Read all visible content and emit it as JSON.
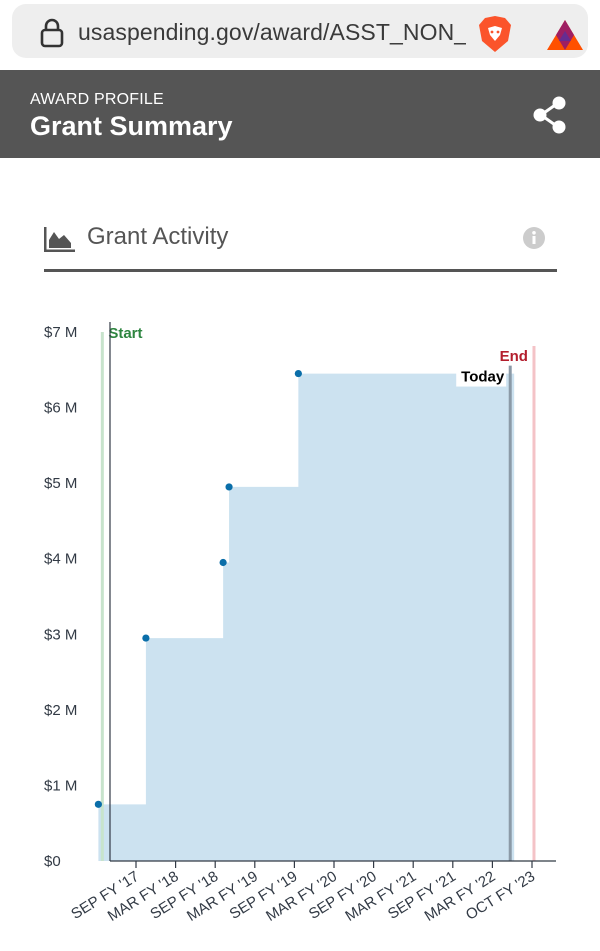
{
  "browser": {
    "url": "usaspending.gov/award/ASST_NON_"
  },
  "header": {
    "eyebrow": "AWARD PROFILE",
    "title": "Grant Summary"
  },
  "section": {
    "title": "Grant Activity"
  },
  "chart_data": {
    "type": "area",
    "step": true,
    "title": "",
    "xlabel": "",
    "ylabel": "",
    "ylim": [
      0,
      7
    ],
    "y_unit": "$M",
    "y_ticks": [
      0,
      1,
      2,
      3,
      4,
      5,
      6,
      7
    ],
    "y_tick_labels": [
      "$0",
      "$1 M",
      "$2 M",
      "$3 M",
      "$4 M",
      "$5 M",
      "$6 M",
      "$7 M"
    ],
    "x_tick_labels": [
      "SEP FY '17",
      "MAR FY '18",
      "SEP FY '18",
      "MAR FY '19",
      "SEP FY '19",
      "MAR FY '20",
      "SEP FY '20",
      "MAR FY '21",
      "SEP FY '21",
      "MAR FY '22",
      "OCT FY '23"
    ],
    "x_tick_index": [
      0,
      1,
      2,
      3,
      4,
      5,
      6,
      7,
      8,
      9,
      10
    ],
    "xlim": [
      -0.95,
      10.8
    ],
    "points": [
      {
        "x": -0.95,
        "y": 0.75
      },
      {
        "x": 0.25,
        "y": 2.95
      },
      {
        "x": 2.2,
        "y": 3.95
      },
      {
        "x": 2.35,
        "y": 4.95
      },
      {
        "x": 4.1,
        "y": 6.45
      }
    ],
    "area_end_x": 9.55,
    "markers": [
      {
        "label": "Start",
        "x": -0.85,
        "color": "#2e8540"
      },
      {
        "label": "Today",
        "x": 9.45,
        "color": "#000000"
      },
      {
        "label": "End",
        "x": 10.05,
        "color": "#b31e2d"
      }
    ],
    "colors": {
      "area": "#cce2f0",
      "point": "#0a6ea9",
      "axis": "#323a45",
      "start_line": "#c7e3cc",
      "today_line": "#8b9aa7",
      "end_line": "#f4c3c7"
    }
  }
}
